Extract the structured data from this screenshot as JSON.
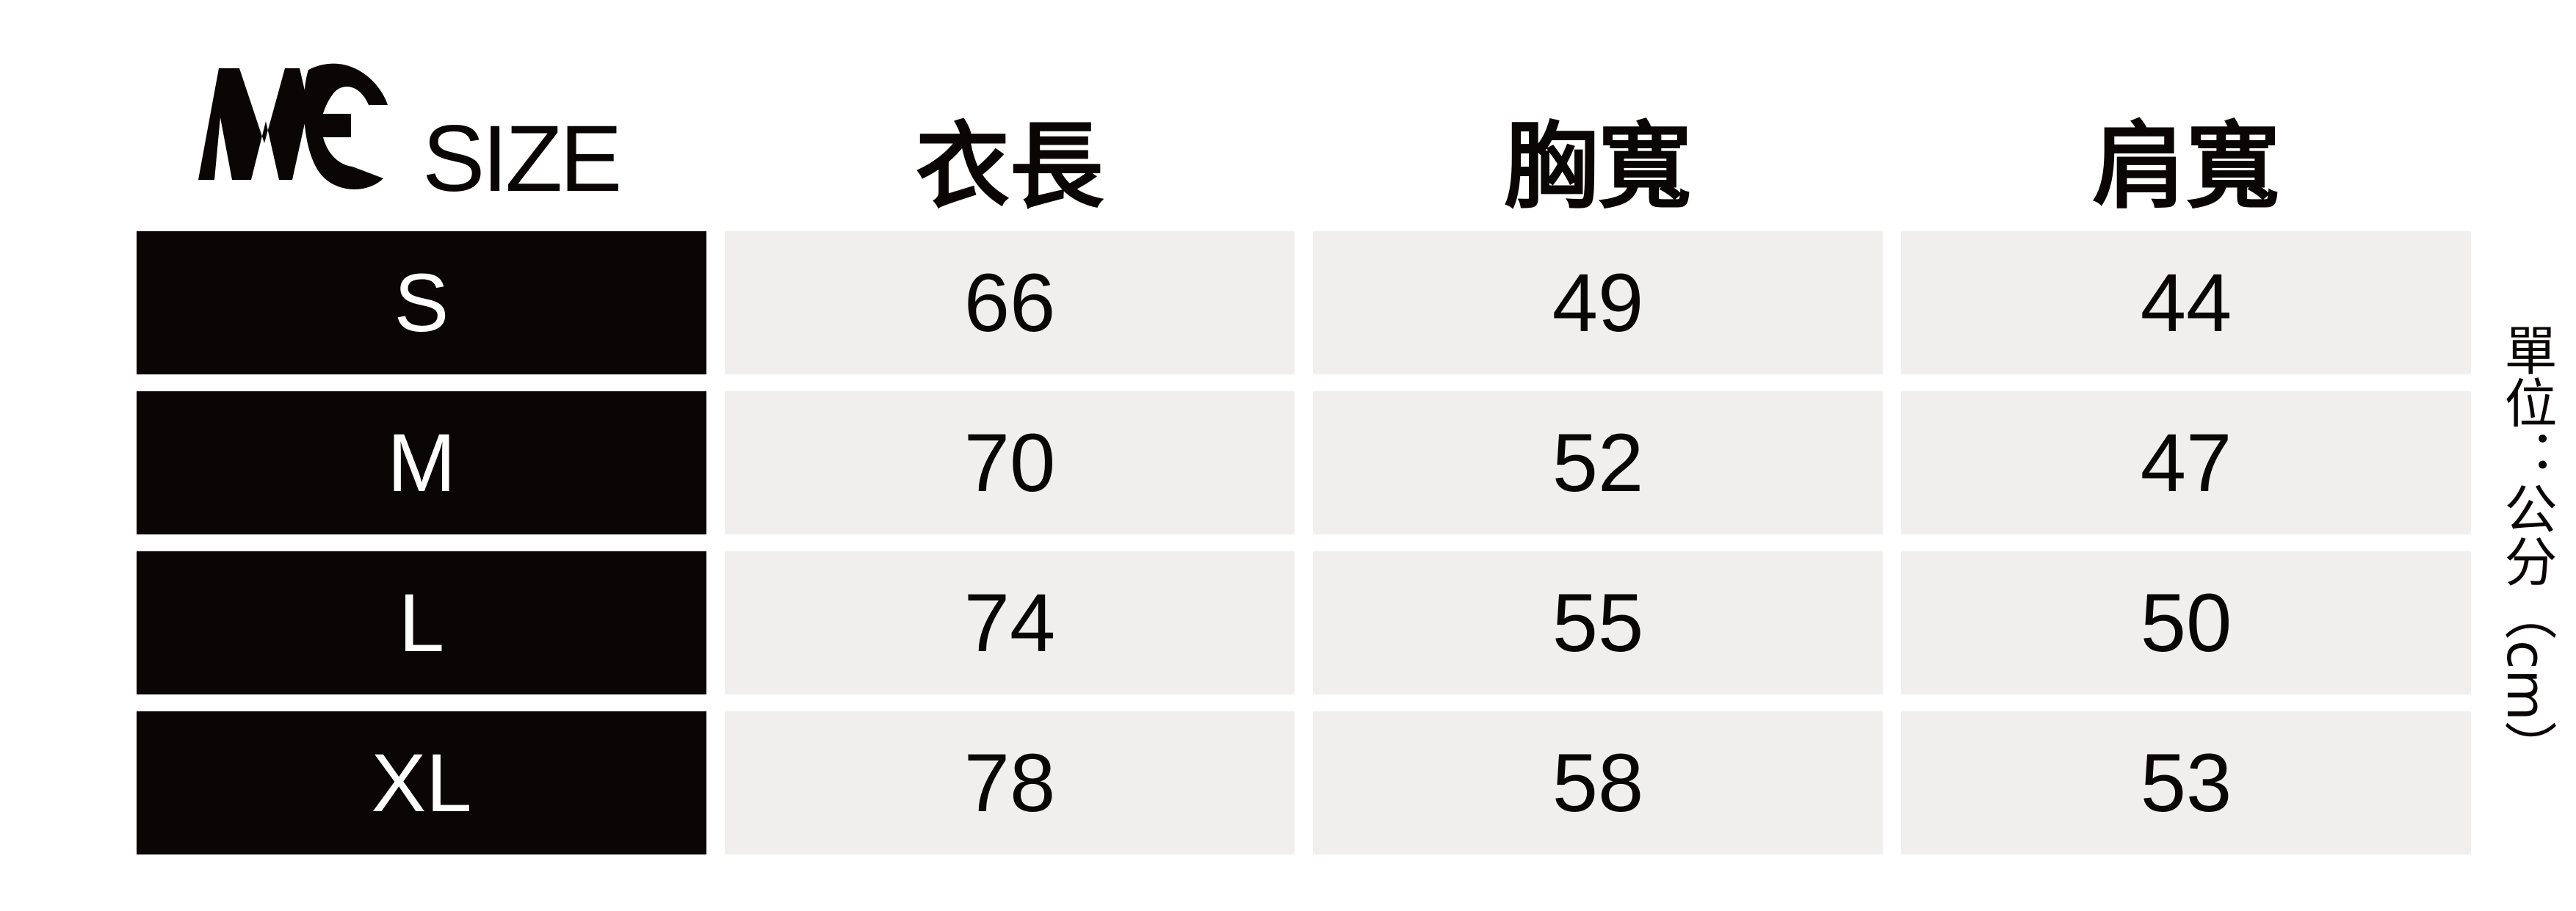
{
  "logo": {
    "mark": "MC",
    "text": "SIZE"
  },
  "headers": [
    "衣長",
    "胸寬",
    "肩寬"
  ],
  "rows": [
    {
      "size": "S",
      "values": [
        "66",
        "49",
        "44"
      ]
    },
    {
      "size": "M",
      "values": [
        "70",
        "52",
        "47"
      ]
    },
    {
      "size": "L",
      "values": [
        "74",
        "55",
        "50"
      ]
    },
    {
      "size": "XL",
      "values": [
        "78",
        "58",
        "53"
      ]
    }
  ],
  "unit": "單位：公分（cm）",
  "colors": {
    "size_bg": "#0a0605",
    "cell_bg": "#f0efee",
    "text": "#0a0605"
  }
}
